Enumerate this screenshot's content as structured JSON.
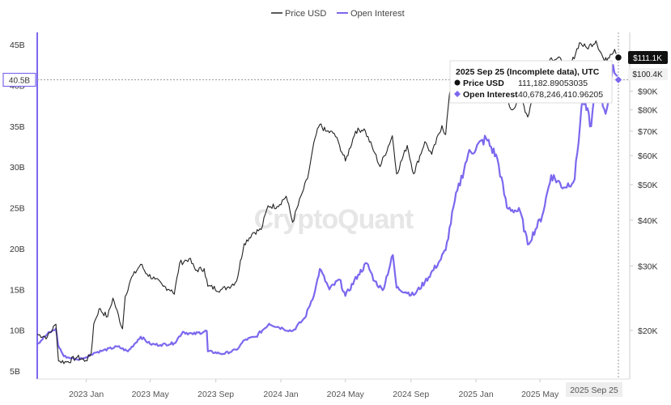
{
  "colors": {
    "price": "#222222",
    "open_interest": "#7b68ee",
    "grid": "#eeeeee"
  },
  "chart_data": {
    "type": "line",
    "watermark": "CryptoQuant",
    "legend": {
      "placement": "top-center",
      "entries": [
        "Price USD",
        "Open Interest"
      ]
    },
    "x_ticks": [
      "2023 Jan",
      "2023 May",
      "2023 Sep",
      "2024 Jan",
      "2024 May",
      "2024 Sep",
      "2025 Jan",
      "2025 May"
    ],
    "x_tick_dates": [
      "2023-01-01",
      "2023-05-01",
      "2023-09-01",
      "2024-01-01",
      "2024-05-01",
      "2024-09-01",
      "2025-01-01",
      "2025-05-01"
    ],
    "x_range": [
      "2022-10-01",
      "2025-09-25"
    ],
    "hover_date_label": "2025 Sep 25",
    "left_axis": {
      "ticks": [
        "5B",
        "10B",
        "15B",
        "20B",
        "25B",
        "30B",
        "35B",
        "40B",
        "45B"
      ],
      "tick_values": [
        5,
        10,
        15,
        20,
        25,
        30,
        35,
        40,
        45
      ],
      "range": [
        5,
        45
      ],
      "unit": "billion USD",
      "hover_value": "40.5B"
    },
    "right_axis": {
      "scale": "log",
      "ticks": [
        "$20K",
        "$30K",
        "$40K",
        "$50K",
        "$60K",
        "$70K",
        "$80K",
        "$90K"
      ],
      "tick_values": [
        20000,
        30000,
        40000,
        50000,
        60000,
        70000,
        80000,
        90000
      ],
      "range": [
        15500,
        125000
      ],
      "price_badge": "$111.1K",
      "cursor_badge": "$100.4K",
      "cursor_value": 100400
    },
    "tooltip": {
      "title": "2025 Sep 25 (Incomplete data), UTC",
      "rows": [
        {
          "label": "Price USD",
          "value": "111,182.89053035"
        },
        {
          "label": "Open Interest",
          "value": "40,678,246,410.96205"
        }
      ]
    },
    "series": [
      {
        "name": "Price USD",
        "axis": "right",
        "points": [
          [
            "2022-10-01",
            19500
          ],
          [
            "2022-10-20",
            19200
          ],
          [
            "2022-11-05",
            20800
          ],
          [
            "2022-11-10",
            16500
          ],
          [
            "2022-11-25",
            16400
          ],
          [
            "2022-12-15",
            16900
          ],
          [
            "2022-12-31",
            16550
          ],
          [
            "2023-01-10",
            17200
          ],
          [
            "2023-01-15",
            20800
          ],
          [
            "2023-01-25",
            22900
          ],
          [
            "2023-02-10",
            21800
          ],
          [
            "2023-02-20",
            24500
          ],
          [
            "2023-03-10",
            20200
          ],
          [
            "2023-03-15",
            24800
          ],
          [
            "2023-03-25",
            27500
          ],
          [
            "2023-04-13",
            30300
          ],
          [
            "2023-04-25",
            28500
          ],
          [
            "2023-05-10",
            27600
          ],
          [
            "2023-05-25",
            26400
          ],
          [
            "2023-06-10",
            25800
          ],
          [
            "2023-06-15",
            25100
          ],
          [
            "2023-06-25",
            30500
          ],
          [
            "2023-07-13",
            31400
          ],
          [
            "2023-07-25",
            29200
          ],
          [
            "2023-08-10",
            29500
          ],
          [
            "2023-08-17",
            26400
          ],
          [
            "2023-09-10",
            25800
          ],
          [
            "2023-09-25",
            26300
          ],
          [
            "2023-10-10",
            27300
          ],
          [
            "2023-10-24",
            34500
          ],
          [
            "2023-11-10",
            37000
          ],
          [
            "2023-11-25",
            37700
          ],
          [
            "2023-12-08",
            43800
          ],
          [
            "2023-12-25",
            43600
          ],
          [
            "2024-01-11",
            46500
          ],
          [
            "2024-01-23",
            39500
          ],
          [
            "2024-02-10",
            47500
          ],
          [
            "2024-02-20",
            52000
          ],
          [
            "2024-03-05",
            67000
          ],
          [
            "2024-03-14",
            73000
          ],
          [
            "2024-03-25",
            70000
          ],
          [
            "2024-04-10",
            69000
          ],
          [
            "2024-04-20",
            64000
          ],
          [
            "2024-05-01",
            58000
          ],
          [
            "2024-05-20",
            70000
          ],
          [
            "2024-06-05",
            71000
          ],
          [
            "2024-06-25",
            61000
          ],
          [
            "2024-07-05",
            56000
          ],
          [
            "2024-07-28",
            68000
          ],
          [
            "2024-08-05",
            53500
          ],
          [
            "2024-08-25",
            64000
          ],
          [
            "2024-09-06",
            53500
          ],
          [
            "2024-09-27",
            65500
          ],
          [
            "2024-10-10",
            60500
          ],
          [
            "2024-10-29",
            72500
          ],
          [
            "2024-11-05",
            68500
          ],
          [
            "2024-11-12",
            88000
          ],
          [
            "2024-11-22",
            98500
          ],
          [
            "2024-12-05",
            99000
          ],
          [
            "2024-12-17",
            106000
          ],
          [
            "2024-12-30",
            92500
          ],
          [
            "2025-01-20",
            105000
          ],
          [
            "2025-02-05",
            98000
          ],
          [
            "2025-02-28",
            84000
          ],
          [
            "2025-03-10",
            80000
          ],
          [
            "2025-03-25",
            87500
          ],
          [
            "2025-04-08",
            76500
          ],
          [
            "2025-04-22",
            93500
          ],
          [
            "2025-05-22",
            111000
          ],
          [
            "2025-06-10",
            109500
          ],
          [
            "2025-06-22",
            101000
          ],
          [
            "2025-07-14",
            122000
          ],
          [
            "2025-07-28",
            118000
          ],
          [
            "2025-08-14",
            123500
          ],
          [
            "2025-08-30",
            108500
          ],
          [
            "2025-09-10",
            113500
          ],
          [
            "2025-09-18",
            117000
          ],
          [
            "2025-09-25",
            111183
          ]
        ]
      },
      {
        "name": "Open Interest",
        "axis": "left",
        "points": [
          [
            "2022-10-01",
            8.3
          ],
          [
            "2022-10-20",
            9.5
          ],
          [
            "2022-11-05",
            10.2
          ],
          [
            "2022-11-09",
            8.2
          ],
          [
            "2022-11-20",
            6.8
          ],
          [
            "2022-12-15",
            6.4
          ],
          [
            "2023-01-01",
            6.7
          ],
          [
            "2023-01-15",
            7.2
          ],
          [
            "2023-02-01",
            7.5
          ],
          [
            "2023-03-01",
            8.0
          ],
          [
            "2023-03-20",
            7.4
          ],
          [
            "2023-04-13",
            9.2
          ],
          [
            "2023-05-01",
            8.3
          ],
          [
            "2023-05-20",
            8.2
          ],
          [
            "2023-06-15",
            8.4
          ],
          [
            "2023-07-01",
            9.8
          ],
          [
            "2023-07-20",
            9.5
          ],
          [
            "2023-08-15",
            9.9
          ],
          [
            "2023-08-17",
            7.4
          ],
          [
            "2023-09-15",
            7.1
          ],
          [
            "2023-10-10",
            7.6
          ],
          [
            "2023-10-25",
            8.8
          ],
          [
            "2023-11-15",
            9.2
          ],
          [
            "2023-12-10",
            10.8
          ],
          [
            "2024-01-05",
            10.2
          ],
          [
            "2024-01-23",
            9.9
          ],
          [
            "2024-02-15",
            11.5
          ],
          [
            "2024-03-05",
            14.8
          ],
          [
            "2024-03-14",
            17.5
          ],
          [
            "2024-04-01",
            15.0
          ],
          [
            "2024-04-20",
            16.2
          ],
          [
            "2024-05-01",
            14.2
          ],
          [
            "2024-05-25",
            16.8
          ],
          [
            "2024-06-10",
            18.2
          ],
          [
            "2024-06-25",
            16.0
          ],
          [
            "2024-07-10",
            14.9
          ],
          [
            "2024-07-29",
            19.2
          ],
          [
            "2024-08-05",
            15.2
          ],
          [
            "2024-09-06",
            14.3
          ],
          [
            "2024-09-27",
            15.9
          ],
          [
            "2024-10-25",
            18.5
          ],
          [
            "2024-11-05",
            19.8
          ],
          [
            "2024-11-22",
            25.8
          ],
          [
            "2024-12-17",
            31.5
          ],
          [
            "2025-01-20",
            33.5
          ],
          [
            "2025-02-10",
            31.0
          ],
          [
            "2025-02-28",
            25.0
          ],
          [
            "2025-03-25",
            24.5
          ],
          [
            "2025-04-08",
            20.5
          ],
          [
            "2025-05-05",
            24.0
          ],
          [
            "2025-05-22",
            29.0
          ],
          [
            "2025-06-15",
            27.5
          ],
          [
            "2025-07-05",
            28.5
          ],
          [
            "2025-07-20",
            38.5
          ],
          [
            "2025-08-05",
            35.0
          ],
          [
            "2025-08-14",
            40.5
          ],
          [
            "2025-09-01",
            36.5
          ],
          [
            "2025-09-15",
            42.5
          ],
          [
            "2025-09-25",
            40.68
          ]
        ]
      }
    ]
  }
}
